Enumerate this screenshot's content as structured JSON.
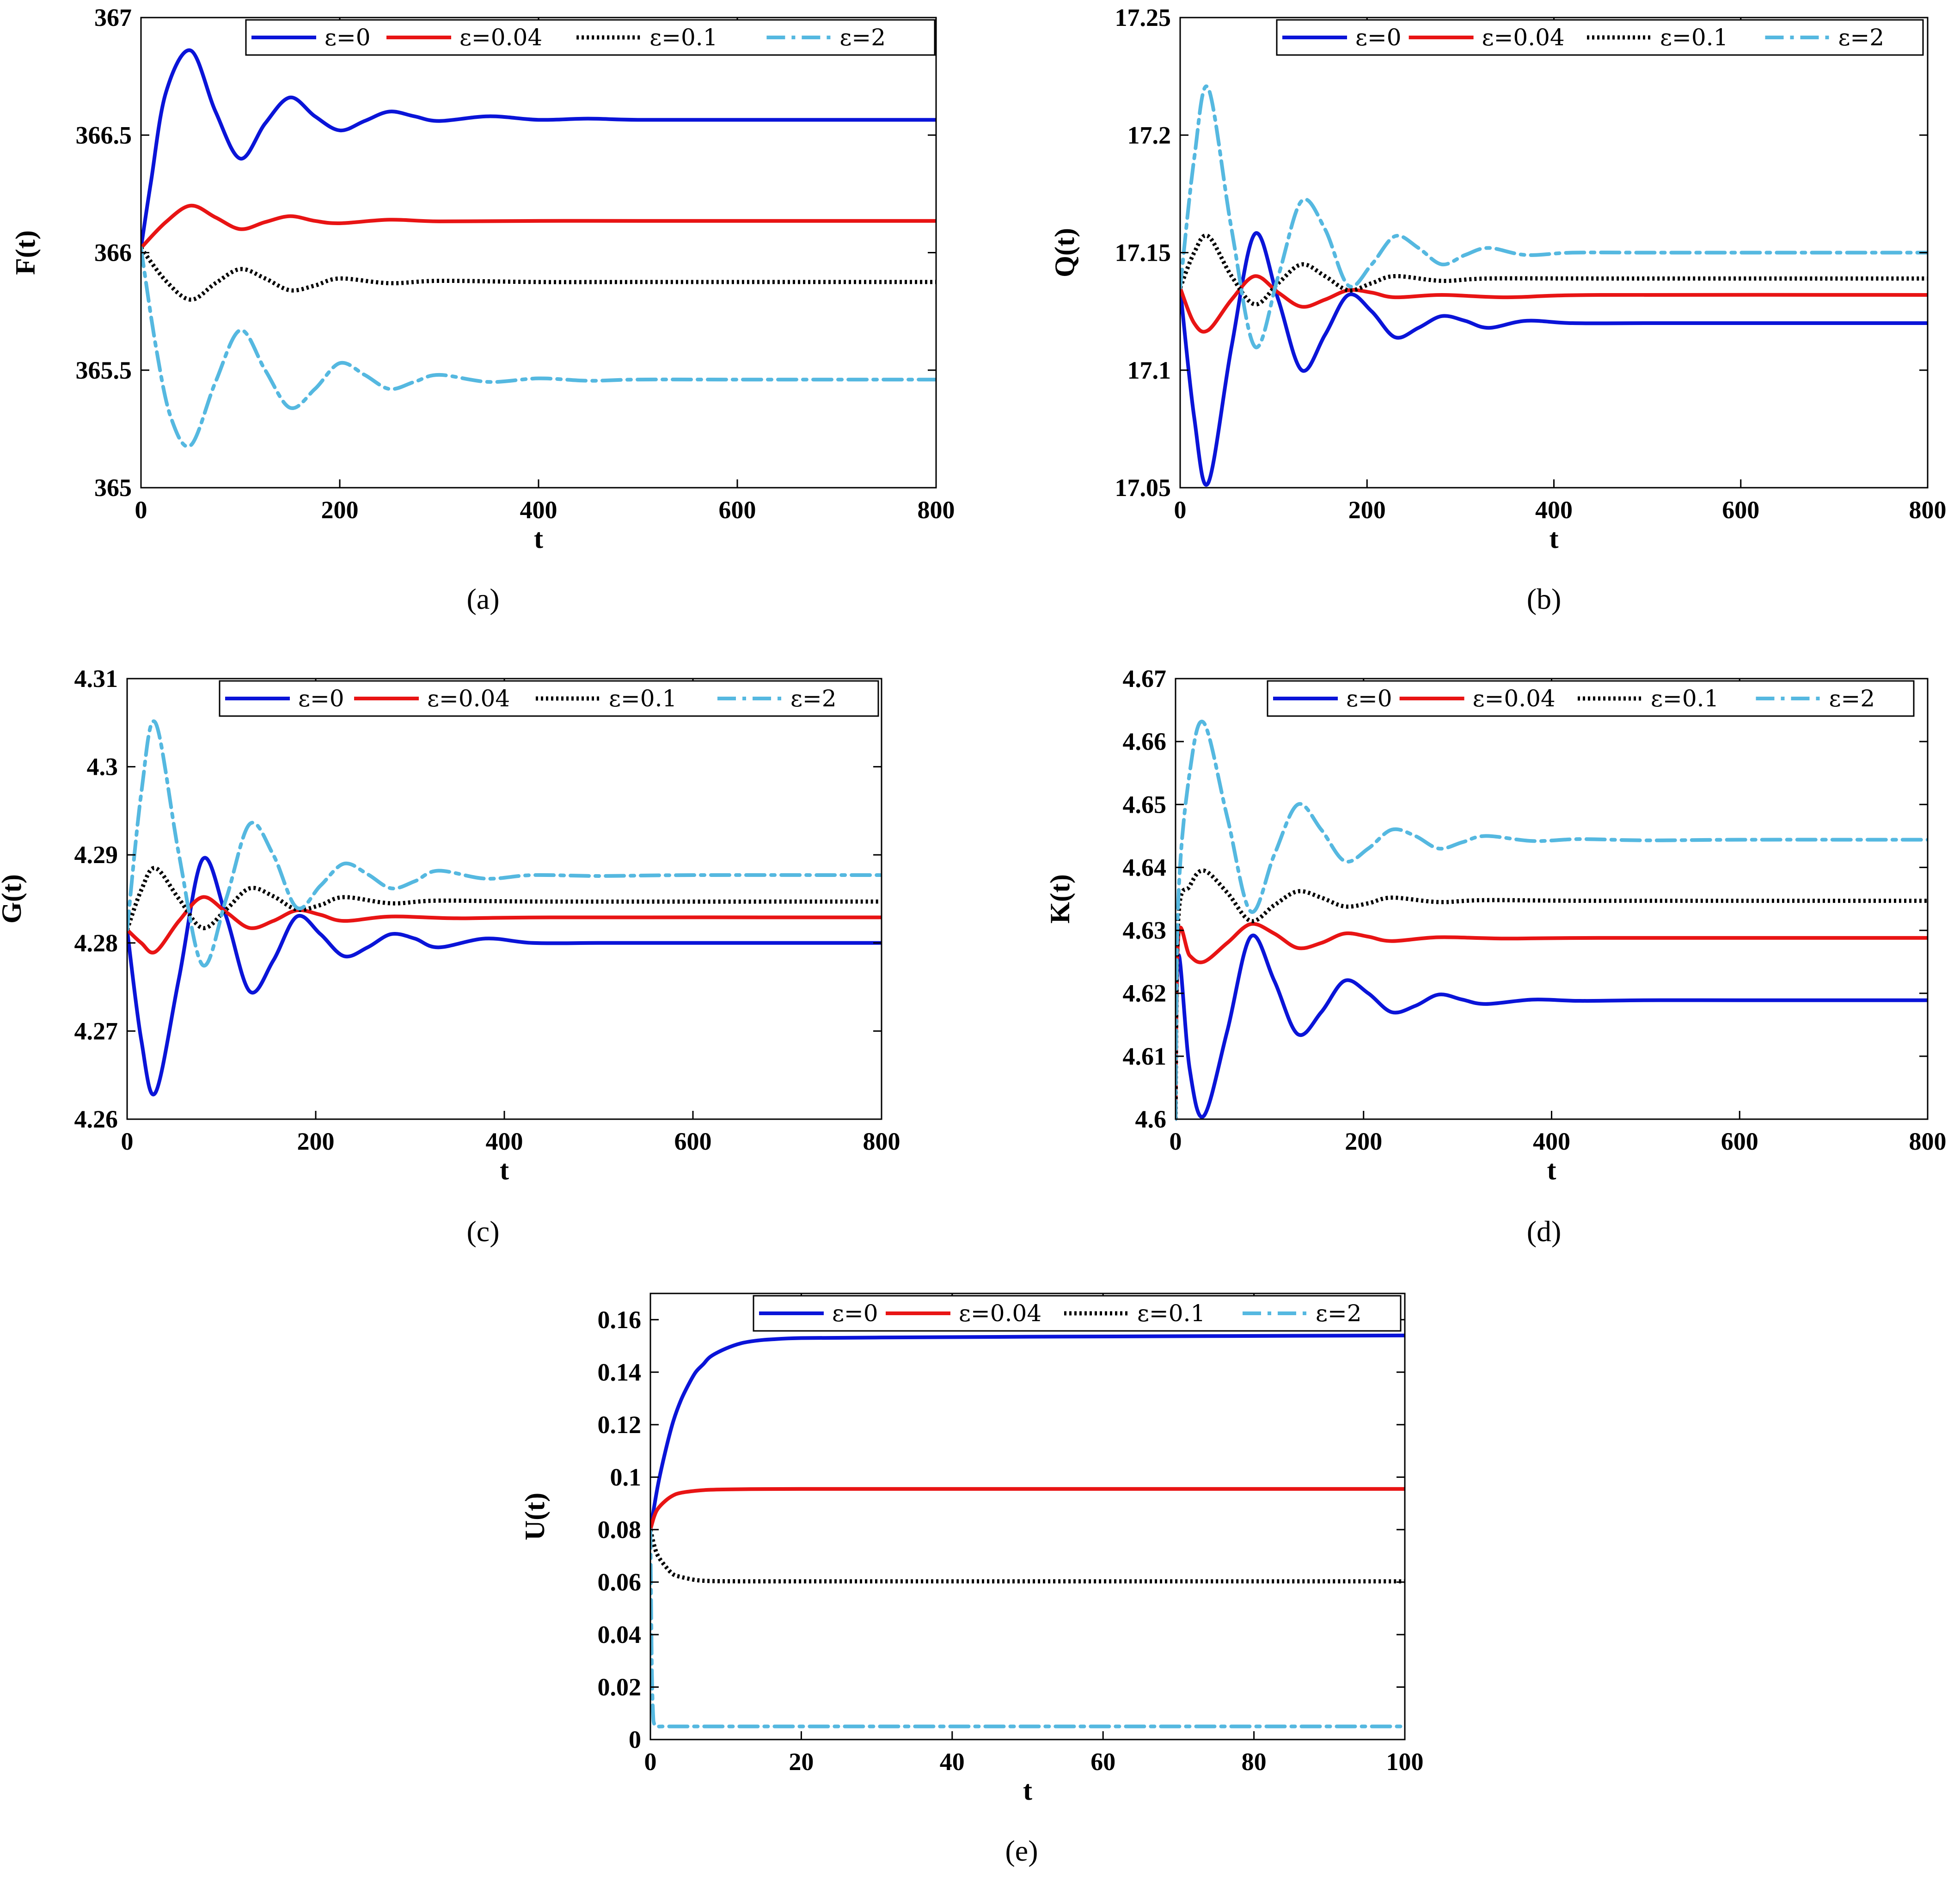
{
  "colors": {
    "eps0": "#0a14d8",
    "eps004": "#e81414",
    "eps01": "#000000",
    "eps2": "#55b8e0"
  },
  "chart_data": [
    {
      "id": "a",
      "type": "line",
      "panel_label": "(a)",
      "xlabel": "t",
      "ylabel": "F(t)",
      "xlim": [
        0,
        800
      ],
      "ylim": [
        365,
        367
      ],
      "xticks": [
        "0",
        "200",
        "400",
        "600",
        "800"
      ],
      "yticks": [
        "365",
        "365.5",
        "366",
        "366.5",
        "367"
      ],
      "xtick_values": [
        0,
        200,
        400,
        600,
        800
      ],
      "ytick_values": [
        365,
        365.5,
        366,
        366.5,
        367
      ],
      "legend": [
        "ε=0",
        "ε=0.04",
        "ε=0.1",
        "ε=2"
      ],
      "series": [
        {
          "name": "ε=0",
          "style": "solid",
          "color": "#0a14d8",
          "x": [
            0,
            10,
            25,
            50,
            75,
            100,
            125,
            150,
            175,
            200,
            225,
            250,
            275,
            300,
            350,
            400,
            450,
            500,
            600,
            700,
            800
          ],
          "values": [
            366.02,
            366.3,
            366.68,
            366.86,
            366.6,
            366.4,
            366.55,
            366.66,
            366.58,
            366.52,
            366.56,
            366.6,
            366.58,
            366.56,
            366.58,
            366.565,
            366.57,
            366.565,
            366.565,
            366.565,
            366.565
          ]
        },
        {
          "name": "ε=0.04",
          "style": "solid",
          "color": "#e81414",
          "x": [
            0,
            25,
            50,
            75,
            100,
            125,
            150,
            175,
            200,
            250,
            300,
            400,
            500,
            800
          ],
          "values": [
            366.02,
            366.13,
            366.2,
            366.15,
            366.1,
            366.13,
            366.155,
            366.135,
            366.125,
            366.14,
            366.133,
            366.135,
            366.135,
            366.135
          ]
        },
        {
          "name": "ε=0.1",
          "style": "dotted",
          "color": "#000000",
          "x": [
            0,
            25,
            50,
            75,
            100,
            125,
            150,
            175,
            200,
            250,
            300,
            400,
            500,
            800
          ],
          "values": [
            366.02,
            365.88,
            365.8,
            365.87,
            365.93,
            365.89,
            365.84,
            365.86,
            365.89,
            365.87,
            365.88,
            365.875,
            365.875,
            365.875
          ]
        },
        {
          "name": "ε=2",
          "style": "dashdot",
          "color": "#55b8e0",
          "x": [
            0,
            15,
            30,
            50,
            75,
            100,
            125,
            150,
            175,
            200,
            225,
            250,
            275,
            300,
            350,
            400,
            450,
            500,
            600,
            800
          ],
          "values": [
            366.02,
            365.6,
            365.3,
            365.18,
            365.45,
            365.67,
            365.5,
            365.34,
            365.42,
            365.53,
            365.48,
            365.42,
            365.45,
            365.48,
            365.45,
            365.465,
            365.455,
            365.46,
            365.46,
            365.46
          ]
        }
      ]
    },
    {
      "id": "b",
      "type": "line",
      "panel_label": "(b)",
      "xlabel": "t",
      "ylabel": "Q(t)",
      "xlim": [
        0,
        800
      ],
      "ylim": [
        17.05,
        17.25
      ],
      "xticks": [
        "0",
        "200",
        "400",
        "600",
        "800"
      ],
      "yticks": [
        "17.05",
        "17.1",
        "17.15",
        "17.2",
        "17.25"
      ],
      "xtick_values": [
        0,
        200,
        400,
        600,
        800
      ],
      "ytick_values": [
        17.05,
        17.1,
        17.15,
        17.2,
        17.25
      ],
      "legend": [
        "ε=0",
        "ε=0.04",
        "ε=0.1",
        "ε=2"
      ],
      "series": [
        {
          "name": "ε=0",
          "style": "solid",
          "color": "#0a14d8",
          "x": [
            0,
            15,
            30,
            55,
            80,
            105,
            130,
            155,
            180,
            205,
            230,
            255,
            280,
            305,
            330,
            370,
            420,
            500,
            600,
            800
          ],
          "values": [
            17.135,
            17.08,
            17.052,
            17.11,
            17.158,
            17.13,
            17.1,
            17.115,
            17.132,
            17.125,
            17.114,
            17.118,
            17.123,
            17.121,
            17.118,
            17.121,
            17.12,
            17.12,
            17.12,
            17.12
          ]
        },
        {
          "name": "ε=0.04",
          "style": "solid",
          "color": "#e81414",
          "x": [
            0,
            15,
            30,
            55,
            80,
            105,
            130,
            155,
            180,
            205,
            230,
            280,
            350,
            450,
            800
          ],
          "values": [
            17.135,
            17.12,
            17.117,
            17.13,
            17.14,
            17.133,
            17.127,
            17.13,
            17.134,
            17.133,
            17.131,
            17.132,
            17.131,
            17.132,
            17.132
          ]
        },
        {
          "name": "ε=0.1",
          "style": "dotted",
          "color": "#000000",
          "x": [
            0,
            15,
            30,
            55,
            80,
            105,
            130,
            155,
            180,
            205,
            230,
            280,
            330,
            450,
            800
          ],
          "values": [
            17.135,
            17.15,
            17.157,
            17.14,
            17.128,
            17.137,
            17.145,
            17.14,
            17.134,
            17.137,
            17.14,
            17.138,
            17.139,
            17.139,
            17.139
          ]
        },
        {
          "name": "ε=2",
          "style": "dashdot",
          "color": "#55b8e0",
          "x": [
            0,
            15,
            30,
            55,
            80,
            105,
            130,
            155,
            180,
            205,
            230,
            255,
            280,
            305,
            330,
            370,
            420,
            500,
            600,
            800
          ],
          "values": [
            17.135,
            17.19,
            17.22,
            17.16,
            17.11,
            17.14,
            17.172,
            17.16,
            17.136,
            17.145,
            17.157,
            17.152,
            17.145,
            17.149,
            17.152,
            17.149,
            17.15,
            17.15,
            17.15,
            17.15
          ]
        }
      ]
    },
    {
      "id": "c",
      "type": "line",
      "panel_label": "(c)",
      "xlabel": "t",
      "ylabel": "G(t)",
      "xlim": [
        0,
        800
      ],
      "ylim": [
        4.26,
        4.31
      ],
      "xticks": [
        "0",
        "200",
        "400",
        "600",
        "800"
      ],
      "yticks": [
        "4.26",
        "4.27",
        "4.28",
        "4.29",
        "4.3",
        "4.31"
      ],
      "xtick_values": [
        0,
        200,
        400,
        600,
        800
      ],
      "ytick_values": [
        4.26,
        4.27,
        4.28,
        4.29,
        4.3,
        4.31
      ],
      "legend": [
        "ε=0",
        "ε=0.04",
        "ε=0.1",
        "ε=2"
      ],
      "series": [
        {
          "name": "ε=0",
          "style": "solid",
          "color": "#0a14d8",
          "x": [
            0,
            15,
            30,
            55,
            80,
            105,
            130,
            155,
            180,
            205,
            230,
            255,
            280,
            305,
            330,
            380,
            430,
            500,
            600,
            800
          ],
          "values": [
            4.2815,
            4.269,
            4.263,
            4.276,
            4.2895,
            4.283,
            4.2745,
            4.278,
            4.283,
            4.281,
            4.2785,
            4.2795,
            4.281,
            4.2805,
            4.2795,
            4.2805,
            4.28,
            4.28,
            4.28,
            4.28
          ]
        },
        {
          "name": "ε=0.04",
          "style": "solid",
          "color": "#e81414",
          "x": [
            0,
            15,
            30,
            55,
            80,
            105,
            130,
            155,
            180,
            205,
            230,
            280,
            350,
            450,
            800
          ],
          "values": [
            4.2815,
            4.28,
            4.279,
            4.2825,
            4.2852,
            4.2835,
            4.2817,
            4.2825,
            4.2837,
            4.2832,
            4.2825,
            4.283,
            4.2828,
            4.2829,
            4.2829
          ]
        },
        {
          "name": "ε=0.1",
          "style": "dotted",
          "color": "#000000",
          "x": [
            0,
            15,
            30,
            55,
            80,
            105,
            130,
            155,
            180,
            205,
            230,
            280,
            330,
            450,
            800
          ],
          "values": [
            4.2815,
            4.286,
            4.2885,
            4.285,
            4.2817,
            4.2838,
            4.2862,
            4.2853,
            4.2838,
            4.2843,
            4.2852,
            4.2845,
            4.2848,
            4.2847,
            4.2847
          ]
        },
        {
          "name": "ε=2",
          "style": "dashdot",
          "color": "#55b8e0",
          "x": [
            0,
            15,
            30,
            55,
            80,
            105,
            130,
            155,
            180,
            205,
            230,
            255,
            280,
            305,
            330,
            380,
            430,
            500,
            600,
            800
          ],
          "values": [
            4.2815,
            4.297,
            4.305,
            4.29,
            4.2775,
            4.285,
            4.2935,
            4.29,
            4.284,
            4.2865,
            4.289,
            4.2878,
            4.2862,
            4.287,
            4.2882,
            4.2873,
            4.2877,
            4.2876,
            4.2877,
            4.2877
          ]
        }
      ]
    },
    {
      "id": "d",
      "type": "line",
      "panel_label": "(d)",
      "xlabel": "t",
      "ylabel": "K(t)",
      "xlim": [
        0,
        800
      ],
      "ylim": [
        4.6,
        4.67
      ],
      "xticks": [
        "0",
        "200",
        "400",
        "600",
        "800"
      ],
      "yticks": [
        "4.6",
        "4.61",
        "4.62",
        "4.63",
        "4.64",
        "4.65",
        "4.66",
        "4.67"
      ],
      "xtick_values": [
        0,
        200,
        400,
        600,
        800
      ],
      "ytick_values": [
        4.6,
        4.61,
        4.62,
        4.63,
        4.64,
        4.65,
        4.66,
        4.67
      ],
      "legend": [
        "ε=0",
        "ε=0.04",
        "ε=0.1",
        "ε=2"
      ],
      "series": [
        {
          "name": "ε=0",
          "style": "solid",
          "color": "#0a14d8",
          "x": [
            0,
            3,
            15,
            30,
            55,
            80,
            105,
            130,
            155,
            180,
            205,
            230,
            255,
            280,
            305,
            330,
            380,
            430,
            500,
            600,
            800
          ],
          "values": [
            4.6,
            4.626,
            4.608,
            4.6005,
            4.614,
            4.629,
            4.622,
            4.6135,
            4.617,
            4.622,
            4.62,
            4.617,
            4.618,
            4.6198,
            4.619,
            4.6183,
            4.619,
            4.6188,
            4.6189,
            4.6189,
            4.6189
          ]
        },
        {
          "name": "ε=0.04",
          "style": "solid",
          "color": "#e81414",
          "x": [
            0,
            3,
            15,
            30,
            55,
            80,
            105,
            130,
            155,
            180,
            205,
            230,
            280,
            350,
            450,
            800
          ],
          "values": [
            4.6,
            4.629,
            4.626,
            4.625,
            4.628,
            4.631,
            4.6295,
            4.6272,
            4.628,
            4.6295,
            4.629,
            4.6283,
            4.6289,
            4.6287,
            4.6288,
            4.6288
          ]
        },
        {
          "name": "ε=0.1",
          "style": "dotted",
          "color": "#000000",
          "x": [
            0,
            3,
            15,
            30,
            55,
            80,
            105,
            130,
            155,
            180,
            205,
            230,
            280,
            330,
            450,
            800
          ],
          "values": [
            4.6,
            4.632,
            4.637,
            4.6395,
            4.636,
            4.6315,
            4.634,
            4.6362,
            4.6352,
            4.6338,
            4.6343,
            4.6352,
            4.6345,
            4.6348,
            4.6347,
            4.6347
          ]
        },
        {
          "name": "ε=2",
          "style": "dashdot",
          "color": "#55b8e0",
          "x": [
            0,
            3,
            15,
            30,
            55,
            80,
            105,
            130,
            155,
            180,
            205,
            230,
            255,
            280,
            305,
            330,
            380,
            430,
            500,
            600,
            800
          ],
          "values": [
            4.6,
            4.635,
            4.655,
            4.663,
            4.648,
            4.633,
            4.642,
            4.65,
            4.646,
            4.641,
            4.643,
            4.646,
            4.645,
            4.643,
            4.644,
            4.645,
            4.6442,
            4.6445,
            4.6443,
            4.6444,
            4.6444
          ]
        }
      ]
    },
    {
      "id": "e",
      "type": "line",
      "panel_label": "(e)",
      "xlabel": "t",
      "ylabel": "U(t)",
      "xlim": [
        0,
        100
      ],
      "ylim": [
        0,
        0.17
      ],
      "xticks": [
        "0",
        "20",
        "40",
        "60",
        "80",
        "100"
      ],
      "yticks": [
        "0",
        "0.02",
        "0.04",
        "0.06",
        "0.08",
        "0.1",
        "0.12",
        "0.14",
        "0.16"
      ],
      "xtick_values": [
        0,
        20,
        40,
        60,
        80,
        100
      ],
      "ytick_values": [
        0,
        0.02,
        0.04,
        0.06,
        0.08,
        0.1,
        0.12,
        0.14,
        0.16
      ],
      "legend": [
        "ε=0",
        "ε=0.04",
        "ε=0.1",
        "ε=2"
      ],
      "series": [
        {
          "name": "ε=0",
          "style": "solid",
          "color": "#0a14d8",
          "x": [
            0,
            1,
            2,
            3,
            4,
            5,
            6,
            7,
            8,
            10,
            12,
            14,
            16,
            20,
            30,
            50,
            100
          ],
          "values": [
            0.08,
            0.097,
            0.11,
            0.121,
            0.129,
            0.135,
            0.14,
            0.143,
            0.146,
            0.149,
            0.151,
            0.152,
            0.1525,
            0.153,
            0.1532,
            0.1535,
            0.154
          ]
        },
        {
          "name": "ε=0.04",
          "style": "solid",
          "color": "#e81414",
          "x": [
            0,
            0.5,
            1,
            2,
            3,
            4,
            6,
            8,
            12,
            20,
            50,
            100
          ],
          "values": [
            0.08,
            0.085,
            0.088,
            0.091,
            0.093,
            0.094,
            0.0948,
            0.0952,
            0.0954,
            0.0955,
            0.0955,
            0.0955
          ]
        },
        {
          "name": "ε=0.1",
          "style": "dotted",
          "color": "#000000",
          "x": [
            0,
            0.5,
            1,
            2,
            3,
            4,
            6,
            8,
            12,
            20,
            50,
            100
          ],
          "values": [
            0.08,
            0.074,
            0.07,
            0.066,
            0.063,
            0.062,
            0.0608,
            0.0604,
            0.0603,
            0.0603,
            0.0603,
            0.0603
          ]
        },
        {
          "name": "ε=2",
          "style": "dashdot",
          "color": "#55b8e0",
          "x": [
            0,
            0.1,
            0.2,
            0.35,
            0.5,
            1,
            2,
            10,
            50,
            100
          ],
          "values": [
            0.08,
            0.05,
            0.025,
            0.01,
            0.006,
            0.005,
            0.005,
            0.005,
            0.005,
            0.005
          ]
        }
      ]
    }
  ]
}
